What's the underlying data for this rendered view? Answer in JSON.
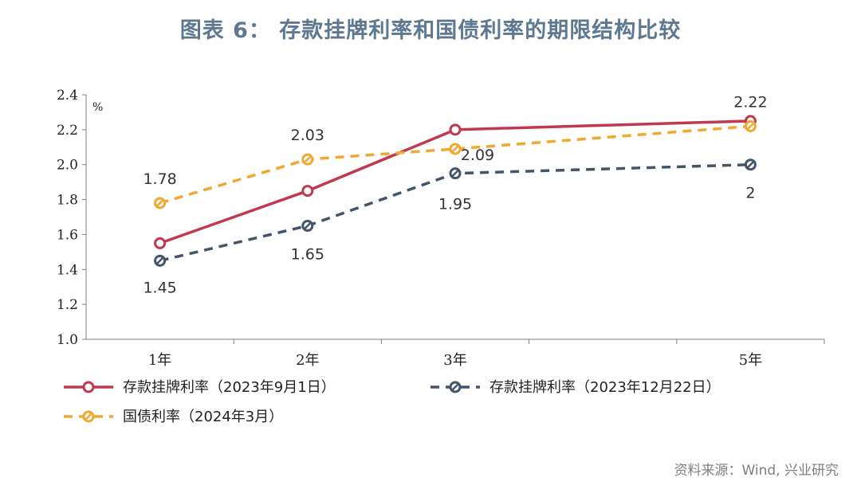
{
  "header": {
    "title": "图表 6： 存款挂牌利率和国债利率的期限结构比较"
  },
  "footer": {
    "source": "资料来源：Wind, 兴业研究"
  },
  "chart_data": {
    "type": "line",
    "title": "图表 6： 存款挂牌利率和国债利率的期限结构比较",
    "xlabel": "",
    "ylabel": "%",
    "categories": [
      "1年",
      "2年",
      "3年",
      "5年"
    ],
    "x": [
      1,
      2,
      3,
      5
    ],
    "ylim": [
      1.0,
      2.4
    ],
    "yticks": [
      "1.0",
      "1.2",
      "1.4",
      "1.6",
      "1.8",
      "2.0",
      "2.2",
      "2.4"
    ],
    "grid": false,
    "legend_position": "bottom",
    "series": [
      {
        "name": "存款挂牌利率（2023年9月1日）",
        "values": [
          1.55,
          1.85,
          2.2,
          2.25
        ],
        "labels": [],
        "color": "#c0394f",
        "style": "solid"
      },
      {
        "name": "存款挂牌利率（2023年12月22日）",
        "values": [
          1.45,
          1.65,
          1.95,
          2.0
        ],
        "labels": [
          "1.45",
          "1.65",
          "1.95",
          "2"
        ],
        "color": "#44546a",
        "style": "dashed"
      },
      {
        "name": "国债利率（2024年3月）",
        "values": [
          1.78,
          2.03,
          2.09,
          2.22
        ],
        "labels": [
          "1.78",
          "2.03",
          "2.09",
          "2.22"
        ],
        "color": "#f0a830",
        "style": "dashed"
      }
    ]
  }
}
